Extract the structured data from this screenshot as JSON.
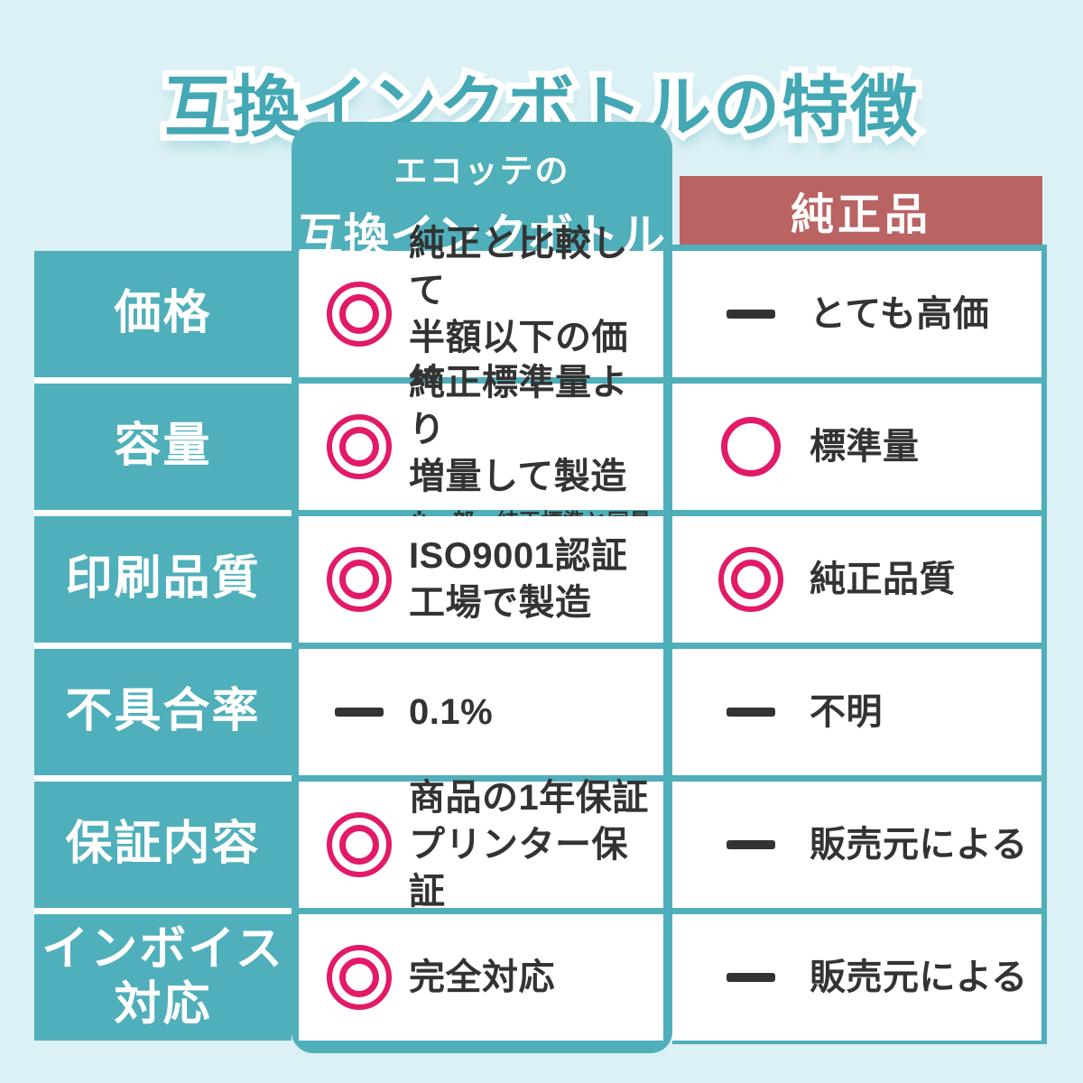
{
  "page": {
    "title": "互換インクボトルの特徴"
  },
  "colors": {
    "background": "#DCF1F5",
    "teal": "#4FAFBA",
    "title_teal": "#43A8B4",
    "genuine_red": "#B96363",
    "pink": "#E21A68",
    "text_dark": "#333333"
  },
  "table": {
    "columns": {
      "product": {
        "brand": "エコッテの",
        "name": "互換インクボトル"
      },
      "genuine": {
        "name": "純正品"
      }
    },
    "rows": [
      {
        "label": "価格",
        "ours": {
          "icon": "double-circle",
          "text": "純正と比較して\n半額以下の価格"
        },
        "genuine": {
          "icon": "dash",
          "text": "とても高価"
        }
      },
      {
        "label": "容量",
        "ours": {
          "icon": "double-circle",
          "text": "純正標準量より\n増量して製造",
          "note": "※一部、純正標準と同量"
        },
        "genuine": {
          "icon": "circle",
          "text": "標準量"
        }
      },
      {
        "label": "印刷品質",
        "ours": {
          "icon": "double-circle",
          "text": "ISO9001認証\n工場で製造"
        },
        "genuine": {
          "icon": "double-circle",
          "text": "純正品質"
        }
      },
      {
        "label": "不具合率",
        "ours": {
          "icon": "dash",
          "text": "0.1%"
        },
        "genuine": {
          "icon": "dash",
          "text": "不明"
        }
      },
      {
        "label": "保証内容",
        "ours": {
          "icon": "double-circle",
          "text": "商品の1年保証\nプリンター保証"
        },
        "genuine": {
          "icon": "dash",
          "text": "販売元による"
        }
      },
      {
        "label": "インボイス\n対応",
        "ours": {
          "icon": "double-circle",
          "text": "完全対応"
        },
        "genuine": {
          "icon": "dash",
          "text": "販売元による"
        }
      }
    ]
  }
}
